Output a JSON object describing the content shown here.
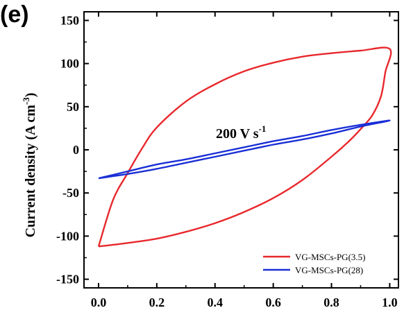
{
  "panel_label": "(e)",
  "chart_data": {
    "type": "line",
    "xlabel": "",
    "ylabel": "Current density (A cm",
    "ylabel_sup": "-3",
    "ylabel_close": ")",
    "xlim": [
      -0.05,
      1.03
    ],
    "ylim": [
      -160,
      160
    ],
    "x_ticks": [
      0.0,
      0.2,
      0.4,
      0.6,
      0.8,
      1.0
    ],
    "x_tick_labels": [
      "0.0",
      "0.2",
      "0.4",
      "0.6",
      "0.8",
      "1.0"
    ],
    "y_ticks": [
      -150,
      -100,
      -50,
      0,
      50,
      100,
      150
    ],
    "y_tick_labels": [
      "-150",
      "-100",
      "-50",
      "0",
      "50",
      "100",
      "150"
    ],
    "annotation": {
      "text": "200 V s",
      "sup": "-1"
    },
    "legend_position": "bottom-right",
    "series": [
      {
        "name": "VG-MSCs-PG(3.5)",
        "color": "#e8282d",
        "points": [
          [
            0.0,
            -112
          ],
          [
            0.05,
            -58
          ],
          [
            0.1,
            -27
          ],
          [
            0.15,
            2
          ],
          [
            0.2,
            26
          ],
          [
            0.3,
            56
          ],
          [
            0.4,
            76
          ],
          [
            0.5,
            91
          ],
          [
            0.6,
            101
          ],
          [
            0.7,
            108
          ],
          [
            0.8,
            112
          ],
          [
            0.9,
            115
          ],
          [
            1.0,
            117
          ],
          [
            0.985,
            90
          ],
          [
            0.97,
            62
          ],
          [
            0.94,
            40
          ],
          [
            0.9,
            24
          ],
          [
            0.86,
            10
          ],
          [
            0.8,
            -8
          ],
          [
            0.7,
            -35
          ],
          [
            0.6,
            -56
          ],
          [
            0.5,
            -72
          ],
          [
            0.4,
            -85
          ],
          [
            0.3,
            -95
          ],
          [
            0.2,
            -103
          ],
          [
            0.1,
            -108
          ],
          [
            0.0,
            -112
          ]
        ]
      },
      {
        "name": "VG-MSCs-PG(28)",
        "color": "#1a2fd6",
        "points": [
          [
            0.0,
            -33
          ],
          [
            0.1,
            -25
          ],
          [
            0.2,
            -17
          ],
          [
            0.3,
            -11
          ],
          [
            0.4,
            -4
          ],
          [
            0.5,
            3
          ],
          [
            0.6,
            10
          ],
          [
            0.7,
            16
          ],
          [
            0.8,
            23
          ],
          [
            0.9,
            29
          ],
          [
            1.0,
            34
          ],
          [
            0.9,
            27
          ],
          [
            0.8,
            19
          ],
          [
            0.7,
            12
          ],
          [
            0.6,
            6
          ],
          [
            0.5,
            -1
          ],
          [
            0.4,
            -8
          ],
          [
            0.3,
            -15
          ],
          [
            0.2,
            -22
          ],
          [
            0.1,
            -28
          ],
          [
            0.0,
            -33
          ]
        ]
      }
    ]
  }
}
